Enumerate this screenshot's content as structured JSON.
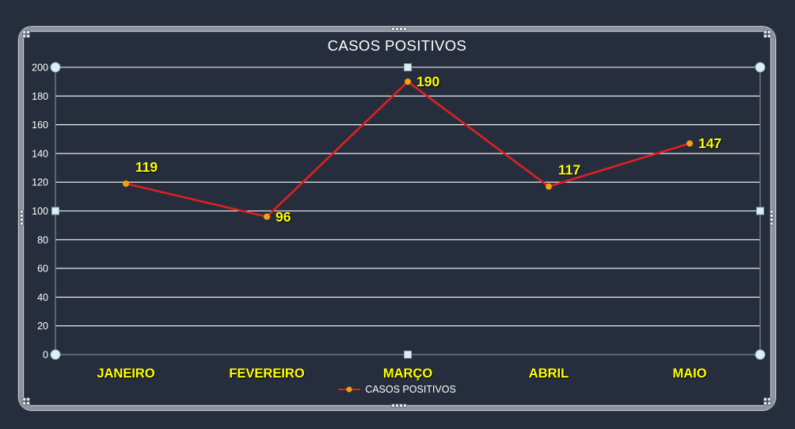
{
  "window": {
    "background": "#262e3d",
    "frame_color": "#8d939e"
  },
  "chart_data": {
    "type": "line",
    "title": "CASOS POSITIVOS",
    "categories": [
      "JANEIRO",
      "FEVEREIRO",
      "MARÇO",
      "ABRIL",
      "MAIO"
    ],
    "series": [
      {
        "name": "CASOS POSITIVOS",
        "values": [
          119,
          96,
          190,
          117,
          147
        ]
      }
    ],
    "xlabel": "",
    "ylabel": "",
    "ylim": [
      0,
      200
    ],
    "ytick_step": 20,
    "yticks": [
      0,
      20,
      40,
      60,
      80,
      100,
      120,
      140,
      160,
      180,
      200
    ],
    "grid": true,
    "legend_position": "bottom",
    "label_positions": [
      "above",
      "right",
      "right",
      "above",
      "right"
    ],
    "selection": {
      "state": "chart-selected",
      "handles": "circles-at-corners-squares-at-midpoints"
    },
    "colors": {
      "background": "#262e3d",
      "line": "#e02020",
      "marker": "#f2a30c",
      "data_label": "#ffff00",
      "category_label": "#ffff00",
      "grid": "#ffffff",
      "axis": "#70757e",
      "tick_label": "#ffffff",
      "title": "#ffffff",
      "legend_text": "#ffffff",
      "handle_fill": "#ddeff6",
      "handle_stroke": "#8fb0bd"
    }
  }
}
